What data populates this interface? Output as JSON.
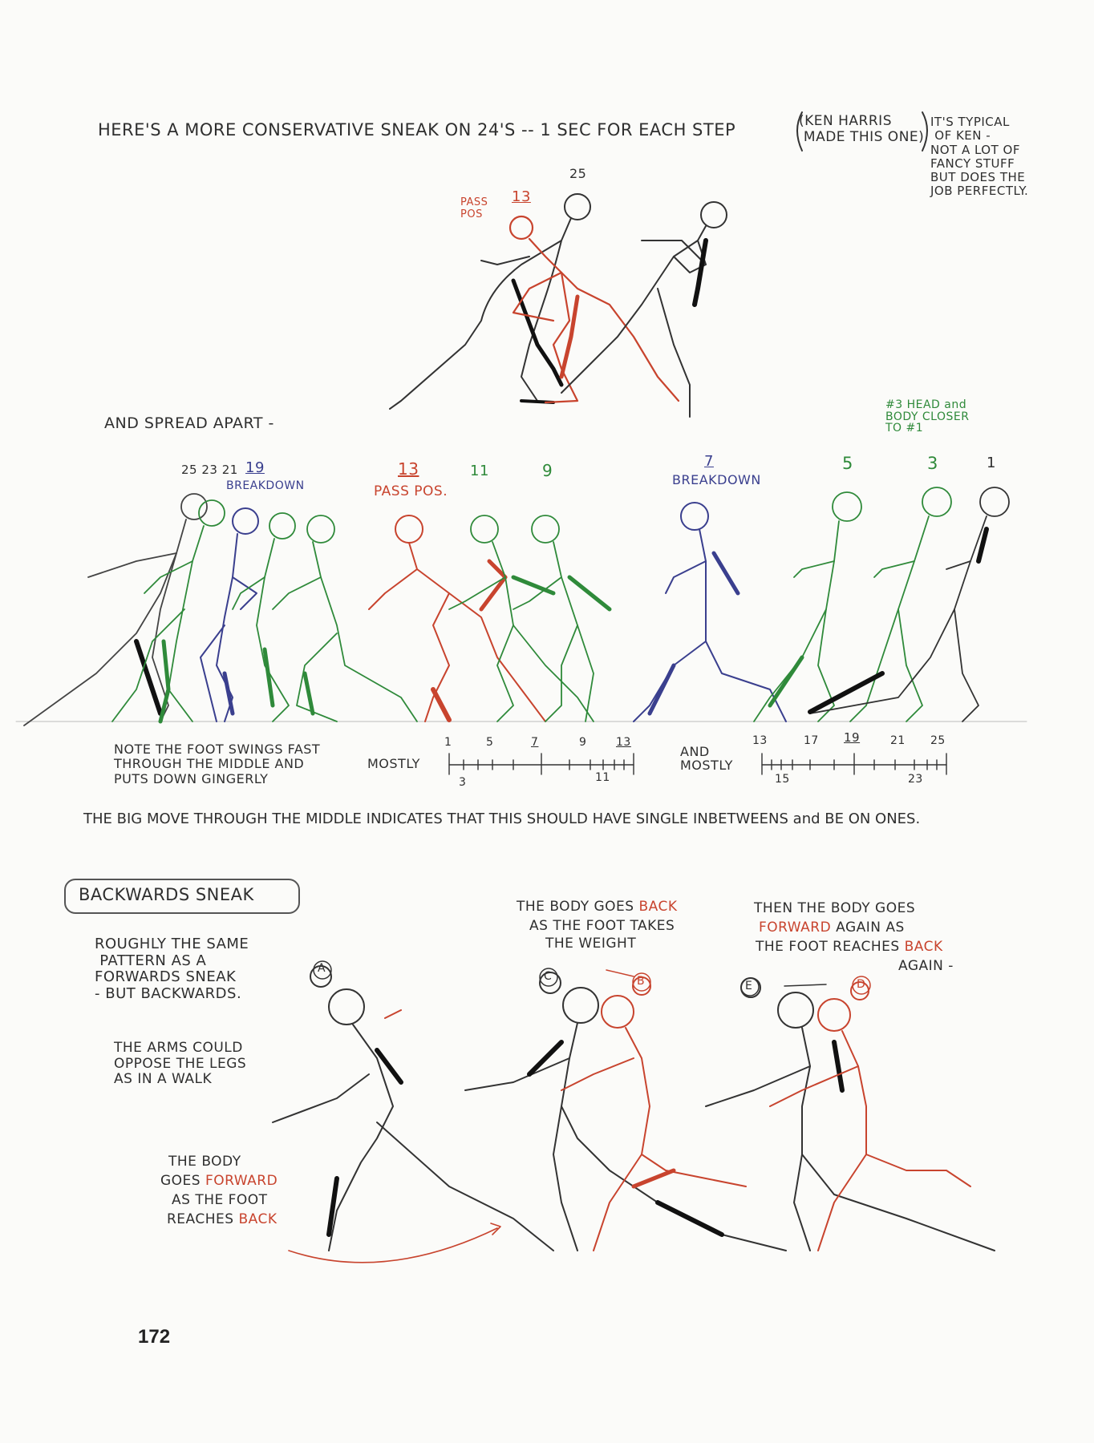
{
  "top": {
    "headline": "HERE'S A MORE CONSERVATIVE SNEAK ON 24'S -- 1 SEC FOR EACH STEP",
    "credit": "(KEN HARRIS\n MADE THIS ONE)",
    "note": "IT'S TYPICAL\n OF KEN -\nNOT A LOT OF\nFANCY STUFF\nBUT DOES THE\nJOB PERFECTLY.",
    "frame_25": "25",
    "pass_pos": "PASS\nPOS",
    "frame_13": "13"
  },
  "spread": {
    "label": "AND SPREAD APART -",
    "frames_left": "25 23 21",
    "frame_19": "19",
    "breakdown_19": "BREAKDOWN",
    "frame_13": "13",
    "pass_pos": "PASS POS.",
    "frame_11": "11",
    "frame_9": "9",
    "frame_7": "7",
    "breakdown_7": "BREAKDOWN",
    "frame_5": "5",
    "frame_3": "3",
    "frame_1": "1",
    "head_note": "#3 HEAD and\nBODY CLOSER\nTO #1"
  },
  "timing": {
    "note": "NOTE THE FOOT SWINGS FAST\nTHROUGH THE MIDDLE AND\nPUTS DOWN GINGERLY",
    "mostly_1": "MOSTLY",
    "chart1_top": [
      "1",
      "5",
      "7",
      "9",
      "13"
    ],
    "chart1_bottom": [
      "3",
      "11"
    ],
    "and_mostly": "AND\nMOSTLY",
    "chart2_top": [
      "13",
      "17",
      "19",
      "21",
      "25"
    ],
    "chart2_bottom": [
      "15",
      "23"
    ]
  },
  "conclusion": "THE BIG MOVE THROUGH THE MIDDLE INDICATES THAT THIS SHOULD HAVE SINGLE INBETWEENS and BE ON ONES.",
  "backwards": {
    "title": "BACKWARDS SNEAK",
    "desc": "ROUGHLY THE SAME\n PATTERN AS A\nFORWARDS SNEAK\n- BUT BACKWARDS.",
    "arms": "THE ARMS COULD\nOPPOSE THE LEGS\nAS IN A WALK",
    "body_fwd_1": "THE BODY",
    "body_fwd_2": "GOES ",
    "body_fwd_2r": "FORWARD",
    "body_fwd_3": "AS THE FOOT",
    "body_fwd_4": "REACHES ",
    "body_fwd_4r": "BACK",
    "body_back_1": "THE BODY GOES ",
    "body_back_1r": "BACK",
    "body_back_2": "AS THE FOOT TAKES",
    "body_back_3": "THE WEIGHT",
    "then_1": "THEN THE BODY GOES",
    "then_2r": "FORWARD",
    "then_2": " AGAIN AS",
    "then_3": "THE FOOT REACHES ",
    "then_3r": "BACK",
    "then_4": "AGAIN -",
    "label_a": "A",
    "label_b": "B",
    "label_c": "C",
    "label_d": "D",
    "label_e": "E"
  },
  "page_number": "172",
  "colors": {
    "red": "#c8442e",
    "green": "#2f8a3a",
    "blue": "#3a3f8e",
    "pencil": "#2f2f2f"
  }
}
